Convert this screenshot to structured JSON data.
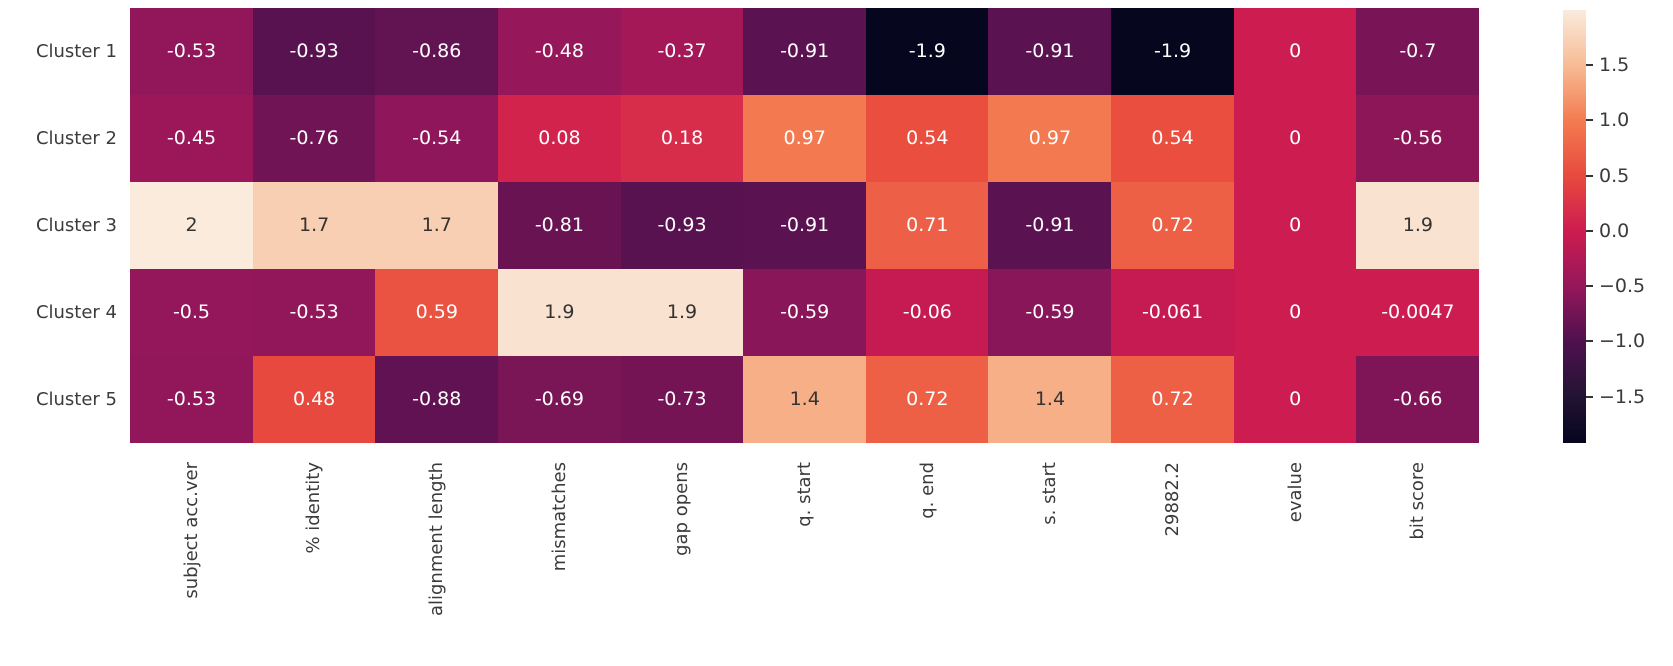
{
  "chart_data": {
    "type": "heatmap",
    "title": "",
    "rows": [
      "Cluster 1",
      "Cluster 2",
      "Cluster 3",
      "Cluster 4",
      "Cluster 5"
    ],
    "columns": [
      "subject acc.ver",
      "% identity",
      "alignment length",
      "mismatches",
      "gap opens",
      "q. start",
      "q. end",
      "s. start",
      "29882.2",
      "evalue",
      "bit score"
    ],
    "values": [
      [
        "-0.53",
        "-0.93",
        "-0.86",
        "-0.48",
        "-0.37",
        "-0.91",
        "-1.9",
        "-0.91",
        "-1.9",
        "0",
        "-0.7"
      ],
      [
        "-0.45",
        "-0.76",
        "-0.54",
        "0.08",
        "0.18",
        "0.97",
        "0.54",
        "0.97",
        "0.54",
        "0",
        "-0.56"
      ],
      [
        "2",
        "1.7",
        "1.7",
        "-0.81",
        "-0.93",
        "-0.91",
        "0.71",
        "-0.91",
        "0.72",
        "0",
        "1.9"
      ],
      [
        "-0.5",
        "-0.53",
        "0.59",
        "1.9",
        "1.9",
        "-0.59",
        "-0.06",
        "-0.59",
        "-0.061",
        "0",
        "-0.0047"
      ],
      [
        "-0.53",
        "0.48",
        "-0.88",
        "-0.69",
        "-0.73",
        "1.4",
        "0.72",
        "1.4",
        "0.72",
        "0",
        "-0.66"
      ]
    ],
    "vmin": -1.92,
    "vmax": 2.0,
    "grid": false,
    "legend_position": "right",
    "colormap_name": "rocket",
    "colormap_anchors": [
      {
        "t": 0.0,
        "hex": "#05051E"
      },
      {
        "t": 0.11,
        "hex": "#241334"
      },
      {
        "t": 0.237,
        "hex": "#50114F"
      },
      {
        "t": 0.364,
        "hex": "#96175B"
      },
      {
        "t": 0.492,
        "hex": "#CE1C50"
      },
      {
        "t": 0.619,
        "hex": "#E84B3E"
      },
      {
        "t": 0.746,
        "hex": "#F47C51"
      },
      {
        "t": 0.873,
        "hex": "#F7BC95"
      },
      {
        "t": 1.0,
        "hex": "#FAEBDD"
      }
    ],
    "colorbar_ticks": [
      {
        "value": 1.5,
        "label": "1.5"
      },
      {
        "value": 1.0,
        "label": "1.0"
      },
      {
        "value": 0.5,
        "label": "0.5"
      },
      {
        "value": 0.0,
        "label": "0.0"
      },
      {
        "value": -0.5,
        "label": "−0.5"
      },
      {
        "value": -1.0,
        "label": "−1.0"
      },
      {
        "value": -1.5,
        "label": "−1.5"
      }
    ],
    "annotation_color_light_cells": "#333333",
    "annotation_color_dark_cells": "#ffffff",
    "axis_label_color": "#3b3b3b",
    "background_color": "#ffffff"
  }
}
